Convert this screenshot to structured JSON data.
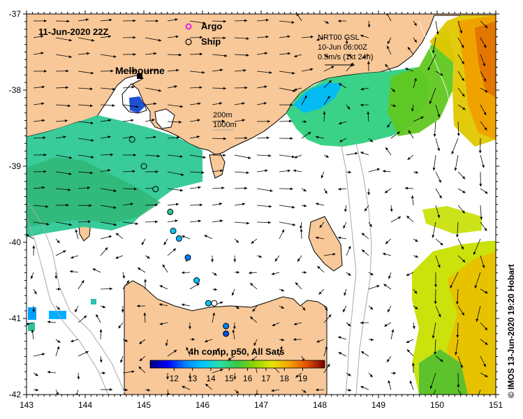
{
  "title": "11-Jun-2020 22Z",
  "city_label": "Melbourne",
  "legend": {
    "argo_label": "Argo",
    "ship_label": "Ship",
    "argo_color": "#e61ee6",
    "ship_color": "#000000"
  },
  "isobath_legend": [
    "200m",
    "1000m"
  ],
  "current_legend": {
    "line1": "NRT00 GSL",
    "line2": "10-Jun 06:00Z",
    "line3": "0.5m/s (1kt 24h)"
  },
  "colorbar": {
    "title": "4h comp, p50, All Sats",
    "ticks": [
      "12",
      "13",
      "14",
      "15",
      "16",
      "17",
      "18",
      "19"
    ],
    "colors": [
      "#00007f",
      "#0000ff",
      "#007fff",
      "#00c8ff",
      "#29e0a8",
      "#3cc846",
      "#8fd400",
      "#e6e600",
      "#f5a000",
      "#e05000",
      "#a01400",
      "#780000"
    ]
  },
  "credit": "© IMOS 13-Jun-2020 19:20 Hobart",
  "axes": {
    "x_ticks": [
      "143",
      "144",
      "145",
      "146",
      "147",
      "148",
      "149",
      "150",
      "151"
    ],
    "y_ticks": [
      "-37",
      "-38",
      "-39",
      "-40",
      "-41",
      "-42"
    ],
    "x_range": [
      143,
      151
    ],
    "y_range": [
      -42,
      -37
    ]
  },
  "colors": {
    "land": "#f8c898",
    "ocean": "#ffffff",
    "coast": "#000000"
  },
  "ship_stations": [
    [
      144.8,
      -38.65
    ],
    [
      145.0,
      -39.0
    ],
    [
      145.2,
      -39.3
    ],
    [
      145.45,
      -39.6
    ],
    [
      145.5,
      -39.85
    ],
    [
      145.6,
      -39.95
    ],
    [
      145.75,
      -40.2
    ],
    [
      145.9,
      -40.5
    ],
    [
      146.1,
      -40.8
    ],
    [
      146.2,
      -40.8
    ],
    [
      146.4,
      -41.1
    ],
    [
      146.4,
      -41.2
    ]
  ]
}
